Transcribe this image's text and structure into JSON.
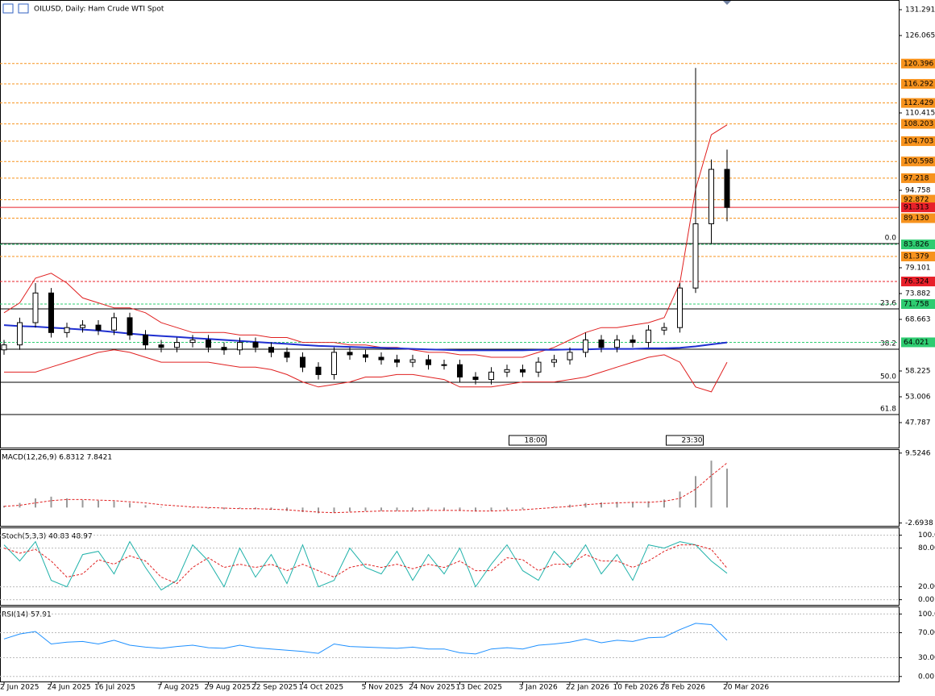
{
  "chart_data": {
    "type": "candlestick",
    "title": "OILUSD, Daily: Ham Crude WTI Spot",
    "categories": [
      "2 Jun 2025",
      null,
      null,
      "24 Jun 2025",
      null,
      null,
      "16 Jul 2025",
      null,
      null,
      null,
      "7 Aug 2025",
      null,
      null,
      "29 Aug 2025",
      null,
      null,
      "22 Sep 2025",
      null,
      null,
      "14 Oct 2025",
      null,
      null,
      null,
      "5 Nov 2025",
      null,
      null,
      "24 Nov 2025",
      null,
      null,
      "13 Dec 2025",
      null,
      null,
      null,
      "3 Jan 2026",
      null,
      null,
      "22 Jan 2026",
      null,
      null,
      "10 Feb 2026",
      null,
      null,
      "28 Feb 2026",
      null,
      null,
      null,
      "20 Mar 2026"
    ],
    "open": [
      62.5,
      63.5,
      68,
      74,
      66,
      67,
      67.5,
      66.5,
      69,
      65.5,
      63.5,
      63,
      64,
      64.5,
      63,
      62.5,
      64,
      63,
      62,
      61,
      59,
      57.5,
      62,
      61.5,
      61,
      60.5,
      60,
      60.5,
      59.5,
      59.5,
      57,
      56.5,
      58,
      58.5,
      58,
      60,
      60.5,
      62,
      64.5,
      63,
      64.5,
      64,
      66.5,
      67,
      75,
      88,
      99
    ],
    "high": [
      64.5,
      69,
      76,
      75,
      68,
      68.5,
      68.5,
      70,
      70,
      66.5,
      64.5,
      65,
      65.5,
      65.5,
      64,
      65,
      65,
      64,
      63,
      62,
      60,
      63,
      63,
      62.5,
      62,
      61.5,
      61.5,
      61.5,
      60.5,
      60.5,
      58,
      59,
      59.5,
      59.5,
      61,
      61.5,
      63,
      66,
      65.5,
      65.5,
      65.5,
      67.5,
      68,
      76,
      119.5,
      101,
      103
    ],
    "low": [
      61.5,
      62.5,
      67,
      65,
      65,
      66,
      65.5,
      65.5,
      64.5,
      62.5,
      62,
      62,
      63,
      62,
      61.5,
      61.5,
      62,
      61,
      60,
      58,
      56.5,
      56.5,
      60.5,
      60,
      59.5,
      59,
      59,
      58.5,
      58.5,
      56,
      55.5,
      55.5,
      57,
      57,
      57,
      59,
      59.5,
      61,
      62,
      62,
      63,
      63,
      65.5,
      66,
      74,
      84,
      88.5
    ],
    "close": [
      63.5,
      68,
      74,
      66,
      67,
      67.5,
      66.5,
      69,
      65.5,
      63.5,
      63,
      64,
      64.5,
      63,
      62.5,
      64,
      63,
      62,
      61,
      59,
      57.5,
      62,
      61.5,
      61,
      60.5,
      60,
      60.5,
      59.5,
      59.5,
      57,
      56.5,
      58,
      58.5,
      58,
      60,
      60.5,
      62,
      64.5,
      63,
      64.5,
      64,
      66.5,
      67,
      75,
      88,
      99,
      91.3
    ],
    "ma": [
      67.5,
      67.3,
      67.2,
      67,
      66.8,
      66.6,
      66.4,
      66.1,
      65.8,
      65.5,
      65.3,
      65.1,
      64.9,
      64.7,
      64.5,
      64.3,
      64.1,
      63.9,
      63.7,
      63.5,
      63.3,
      63.2,
      63.1,
      63,
      62.9,
      62.8,
      62.7,
      62.6,
      62.5,
      62.4,
      62.4,
      62.4,
      62.4,
      62.4,
      62.5,
      62.5,
      62.6,
      62.6,
      62.7,
      62.7,
      62.7,
      62.8,
      62.8,
      62.9,
      63.2,
      63.6,
      64.0
    ],
    "ma_color": "#1f2fd0",
    "bb_upper": [
      70,
      72,
      77,
      78,
      76,
      73,
      72,
      71,
      71,
      70,
      68,
      67,
      66,
      66,
      66,
      65.5,
      65.5,
      65,
      65,
      64,
      64,
      64,
      63.5,
      63.5,
      63,
      63,
      62.5,
      62,
      62,
      61.5,
      61.5,
      61,
      61,
      61,
      62,
      63,
      64.5,
      66,
      67,
      67,
      67.5,
      68,
      69,
      76,
      95,
      106,
      108
    ],
    "bb_lower": [
      58,
      58,
      58,
      59,
      60,
      61,
      62,
      62.5,
      62,
      61,
      60,
      60,
      60,
      60,
      59.5,
      59,
      59,
      58.5,
      57.5,
      56,
      55,
      55.5,
      56,
      57,
      57,
      57.5,
      57.5,
      57,
      56.5,
      55,
      55,
      55,
      55.5,
      56,
      56,
      56,
      56.5,
      57,
      58,
      59,
      60,
      61,
      61.5,
      60,
      55,
      54,
      60
    ],
    "bb_color": "#e02020",
    "ylim": [
      42.73,
      133.25
    ],
    "yticks": [
      131.291,
      126.065,
      110.415,
      94.758,
      79.101,
      73.882,
      68.663,
      58.225,
      53.006,
      47.787
    ],
    "levels": [
      {
        "value": 120.396,
        "label": "120.396",
        "color": "#f7931e"
      },
      {
        "value": 116.292,
        "label": "116.292",
        "color": "#f7931e"
      },
      {
        "value": 112.429,
        "label": "112.429",
        "color": "#f7931e"
      },
      {
        "value": 108.203,
        "label": "108.203",
        "color": "#f7931e"
      },
      {
        "value": 104.703,
        "label": "104.703",
        "color": "#f7931e"
      },
      {
        "value": 100.598,
        "label": "100.598",
        "color": "#f7931e"
      },
      {
        "value": 97.218,
        "label": "97.218",
        "color": "#f7931e"
      },
      {
        "value": 92.872,
        "label": "92.872",
        "color": "#f7931e"
      },
      {
        "value": 91.313,
        "label": "91.313",
        "color": "#e8202a"
      },
      {
        "value": 89.13,
        "label": "89.130",
        "color": "#f7931e"
      },
      {
        "value": 83.826,
        "label": "83.826",
        "color": "#2ecc71"
      },
      {
        "value": 81.379,
        "label": "81.379",
        "color": "#f7931e"
      },
      {
        "value": 76.324,
        "label": "76.324",
        "color": "#e8202a"
      },
      {
        "value": 71.758,
        "label": "71.758",
        "color": "#2ecc71"
      },
      {
        "value": 64.021,
        "label": "64.021",
        "color": "#2ecc71"
      }
    ],
    "fib": [
      {
        "value": 83.99,
        "label": "0.0"
      },
      {
        "value": 70.79,
        "label": "23.6"
      },
      {
        "value": 62.63,
        "label": "38.2"
      },
      {
        "value": 55.94,
        "label": "50.0"
      },
      {
        "value": 49.42,
        "label": "61.8"
      }
    ],
    "markers": [
      "18:00",
      "23:30"
    ],
    "macd": {
      "title": "MACD(12,26,9) 6.8312 7.8421",
      "ylim": [
        -3.2,
        10.2
      ],
      "yticks": [
        9.5246,
        -2.6938
      ],
      "histogram": [
        0.3,
        0.8,
        1.6,
        1.9,
        1.6,
        1.3,
        1.2,
        1.1,
        0.8,
        0.4,
        0.1,
        0,
        -0.1,
        -0.2,
        -0.3,
        -0.2,
        -0.3,
        -0.4,
        -0.6,
        -0.8,
        -1.0,
        -0.9,
        -0.7,
        -0.6,
        -0.6,
        -0.6,
        -0.5,
        -0.5,
        -0.5,
        -0.6,
        -0.7,
        -0.6,
        -0.4,
        -0.3,
        0,
        0.2,
        0.5,
        0.8,
        0.9,
        1.0,
        0.9,
        1.1,
        1.4,
        2.8,
        5.5,
        8.2,
        6.8
      ],
      "signal": [
        0.2,
        0.4,
        0.8,
        1.2,
        1.4,
        1.4,
        1.3,
        1.2,
        1.0,
        0.8,
        0.5,
        0.3,
        0.1,
        0,
        -0.1,
        -0.2,
        -0.2,
        -0.3,
        -0.4,
        -0.6,
        -0.8,
        -0.9,
        -0.8,
        -0.7,
        -0.6,
        -0.6,
        -0.6,
        -0.5,
        -0.5,
        -0.5,
        -0.6,
        -0.6,
        -0.5,
        -0.4,
        -0.2,
        0,
        0.2,
        0.5,
        0.7,
        0.8,
        0.9,
        0.9,
        1.1,
        1.6,
        3.2,
        5.6,
        7.8
      ]
    },
    "stoch": {
      "title": "Stoch(5,3,3) 40.83 48.97",
      "ylim": [
        -8,
        112
      ],
      "yticks": [
        {
          "value": 100,
          "label": "100.00"
        },
        {
          "value": 80,
          "label": "80.00"
        },
        {
          "value": 20,
          "label": "20.00"
        },
        {
          "value": 0,
          "label": "0.00"
        }
      ],
      "main": [
        85,
        60,
        90,
        30,
        20,
        70,
        75,
        40,
        90,
        50,
        15,
        30,
        85,
        60,
        20,
        80,
        35,
        70,
        25,
        85,
        20,
        30,
        80,
        50,
        40,
        75,
        30,
        70,
        40,
        80,
        20,
        55,
        85,
        45,
        30,
        75,
        50,
        85,
        40,
        70,
        30,
        85,
        80,
        90,
        85,
        60,
        41
      ],
      "signal": [
        80,
        72,
        78,
        60,
        35,
        40,
        62,
        55,
        68,
        60,
        35,
        25,
        50,
        65,
        50,
        55,
        50,
        55,
        45,
        55,
        45,
        35,
        50,
        55,
        50,
        55,
        48,
        55,
        50,
        60,
        45,
        45,
        65,
        62,
        45,
        55,
        55,
        70,
        60,
        60,
        50,
        60,
        75,
        85,
        85,
        78,
        49
      ]
    },
    "rsi": {
      "title": "RSI(14) 57.91",
      "ylim": [
        -8,
        112
      ],
      "yticks": [
        {
          "value": 100,
          "label": "100.00"
        },
        {
          "value": 70,
          "label": "70.00"
        },
        {
          "value": 30,
          "label": "30.00"
        },
        {
          "value": 0,
          "label": "0.00"
        }
      ],
      "values": [
        60,
        68,
        72,
        52,
        55,
        56,
        52,
        58,
        50,
        47,
        45,
        48,
        50,
        46,
        45,
        50,
        46,
        44,
        42,
        40,
        37,
        52,
        48,
        47,
        46,
        45,
        47,
        44,
        44,
        38,
        36,
        44,
        46,
        44,
        50,
        52,
        55,
        60,
        54,
        58,
        56,
        62,
        63,
        75,
        85,
        83,
        57.91
      ]
    }
  }
}
